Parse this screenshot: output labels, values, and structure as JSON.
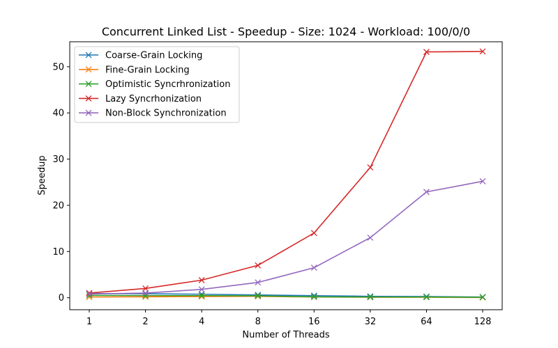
{
  "chart_data": {
    "type": "line",
    "title": "Concurrent Linked List - Speedup - Size: 1024 - Workload: 100/0/0",
    "xlabel": "Number of Threads",
    "ylabel": "Speedup",
    "categories": [
      "1",
      "2",
      "4",
      "8",
      "16",
      "32",
      "64",
      "128"
    ],
    "ylim": [
      -2.6,
      55.4
    ],
    "yticks": [
      0,
      10,
      20,
      30,
      40,
      50
    ],
    "grid": false,
    "legend_position": "upper-left",
    "marker": "x",
    "series": [
      {
        "name": "Coarse-Grain Locking",
        "color": "#1f77b4",
        "values": [
          0.9,
          0.85,
          0.75,
          0.6,
          0.45,
          0.3,
          0.25,
          0.15
        ]
      },
      {
        "name": "Fine-Grain Locking",
        "color": "#ff7f0e",
        "values": [
          0.15,
          0.2,
          0.25,
          0.3,
          0.15,
          0.1,
          0.1,
          0.05
        ]
      },
      {
        "name": "Optimistic Syncrhronization",
        "color": "#2ca02c",
        "values": [
          0.5,
          0.45,
          0.45,
          0.4,
          0.2,
          0.15,
          0.15,
          0.1
        ]
      },
      {
        "name": "Lazy Syncrhonization",
        "color": "#d62728",
        "values": [
          1.0,
          2.0,
          3.8,
          7.0,
          14.0,
          28.2,
          53.2,
          53.3
        ]
      },
      {
        "name": "Non-Block Synchronization",
        "color": "#9467bd",
        "values": [
          0.8,
          1.0,
          1.8,
          3.3,
          6.5,
          13.0,
          22.9,
          25.2
        ]
      }
    ]
  }
}
